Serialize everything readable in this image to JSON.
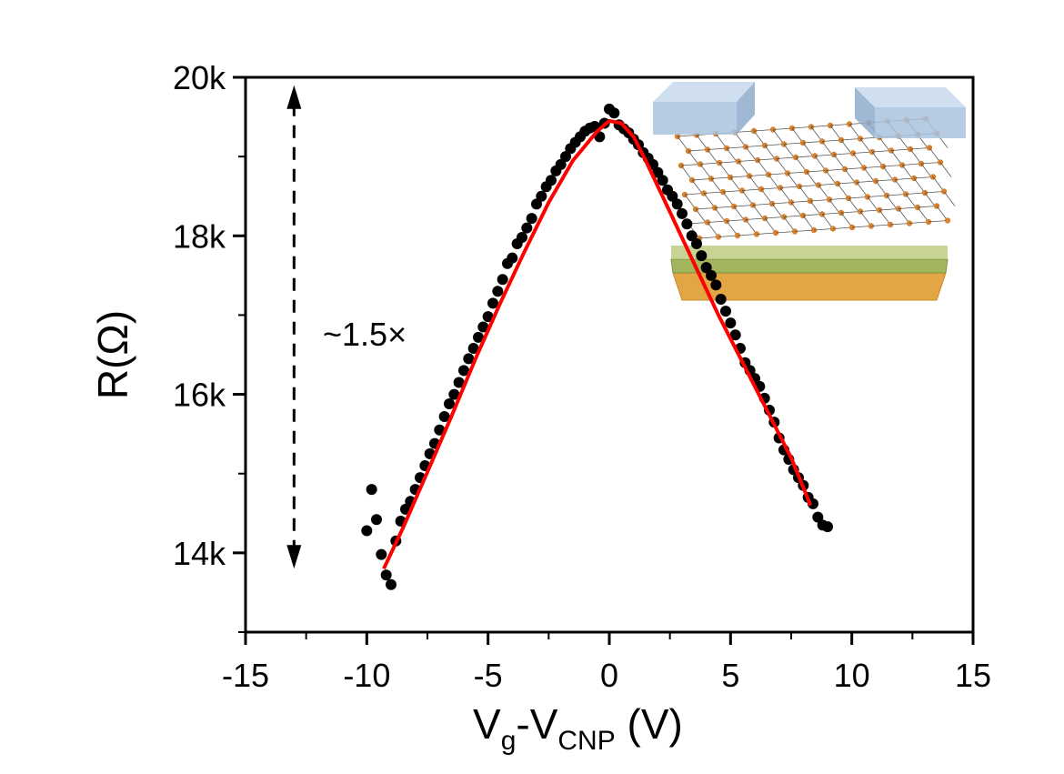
{
  "chart_data": {
    "type": "scatter",
    "xlabel": {
      "base1": "V",
      "sub1": "g",
      "mid": "-V",
      "sub2": "CNP",
      "unit": " (V)"
    },
    "ylabel": "R(Ω)",
    "xlim": [
      -15,
      15
    ],
    "ylim": [
      13000,
      20000
    ],
    "x_ticks": [
      -15,
      -10,
      -5,
      0,
      5,
      10,
      15
    ],
    "x_tick_labels": [
      "-15",
      "-10",
      "-5",
      "0",
      "5",
      "10",
      "15"
    ],
    "y_ticks": [
      14000,
      16000,
      18000,
      20000
    ],
    "y_tick_labels": [
      "14k",
      "16k",
      "18k",
      "20k"
    ],
    "grid": false,
    "annotation": "~1.5×",
    "arrow_range": [
      13800,
      19900
    ],
    "arrow_x": -13,
    "series": [
      {
        "kind": "scatter",
        "color": "#000000",
        "points": [
          [
            -10.0,
            14280
          ],
          [
            -9.8,
            14800
          ],
          [
            -9.6,
            14420
          ],
          [
            -9.4,
            13980
          ],
          [
            -9.2,
            13720
          ],
          [
            -9.0,
            13600
          ],
          [
            -8.8,
            14150
          ],
          [
            -8.6,
            14400
          ],
          [
            -8.4,
            14550
          ],
          [
            -8.2,
            14650
          ],
          [
            -8.0,
            14800
          ],
          [
            -7.8,
            14950
          ],
          [
            -7.6,
            15100
          ],
          [
            -7.4,
            15250
          ],
          [
            -7.2,
            15380
          ],
          [
            -7.0,
            15550
          ],
          [
            -6.8,
            15720
          ],
          [
            -6.6,
            15880
          ],
          [
            -6.4,
            16000
          ],
          [
            -6.2,
            16150
          ],
          [
            -6.0,
            16300
          ],
          [
            -5.8,
            16450
          ],
          [
            -5.6,
            16580
          ],
          [
            -5.4,
            16720
          ],
          [
            -5.2,
            16850
          ],
          [
            -5.0,
            16980
          ],
          [
            -4.8,
            17150
          ],
          [
            -4.6,
            17300
          ],
          [
            -4.4,
            17450
          ],
          [
            -4.2,
            17650
          ],
          [
            -4.0,
            17720
          ],
          [
            -3.8,
            17900
          ],
          [
            -3.6,
            17980
          ],
          [
            -3.4,
            18100
          ],
          [
            -3.2,
            18220
          ],
          [
            -3.0,
            18400
          ],
          [
            -2.8,
            18500
          ],
          [
            -2.6,
            18620
          ],
          [
            -2.4,
            18700
          ],
          [
            -2.2,
            18820
          ],
          [
            -2.0,
            18900
          ],
          [
            -1.8,
            19000
          ],
          [
            -1.6,
            19100
          ],
          [
            -1.4,
            19180
          ],
          [
            -1.2,
            19250
          ],
          [
            -1.0,
            19320
          ],
          [
            -0.8,
            19360
          ],
          [
            -0.6,
            19380
          ],
          [
            -0.4,
            19250
          ],
          [
            -0.2,
            19420
          ],
          [
            0.0,
            19600
          ],
          [
            0.2,
            19550
          ],
          [
            0.4,
            19400
          ],
          [
            0.6,
            19350
          ],
          [
            0.8,
            19300
          ],
          [
            1.0,
            19220
          ],
          [
            1.2,
            19150
          ],
          [
            1.4,
            19050
          ],
          [
            1.6,
            18980
          ],
          [
            1.8,
            18900
          ],
          [
            2.0,
            18800
          ],
          [
            2.2,
            18700
          ],
          [
            2.4,
            18580
          ],
          [
            2.6,
            18500
          ],
          [
            2.8,
            18400
          ],
          [
            3.0,
            18280
          ],
          [
            3.2,
            18150
          ],
          [
            3.4,
            18000
          ],
          [
            3.6,
            17900
          ],
          [
            3.8,
            17750
          ],
          [
            4.0,
            17600
          ],
          [
            4.2,
            17500
          ],
          [
            4.4,
            17380
          ],
          [
            4.6,
            17200
          ],
          [
            4.8,
            17050
          ],
          [
            5.0,
            16900
          ],
          [
            5.2,
            16750
          ],
          [
            5.4,
            16580
          ],
          [
            5.6,
            16400
          ],
          [
            5.8,
            16300
          ],
          [
            6.0,
            16200
          ],
          [
            6.2,
            16100
          ],
          [
            6.4,
            15950
          ],
          [
            6.6,
            15800
          ],
          [
            6.8,
            15650
          ],
          [
            7.0,
            15450
          ],
          [
            7.2,
            15300
          ],
          [
            7.4,
            15180
          ],
          [
            7.6,
            15050
          ],
          [
            7.8,
            14950
          ],
          [
            8.0,
            14850
          ],
          [
            8.2,
            14700
          ],
          [
            8.4,
            14620
          ],
          [
            8.6,
            14450
          ],
          [
            8.8,
            14350
          ],
          [
            9.0,
            14330
          ]
        ]
      },
      {
        "kind": "fit-line",
        "color": "#ff0000",
        "points": [
          [
            -9.3,
            13800
          ],
          [
            -8.5,
            14320
          ],
          [
            -7.5,
            15020
          ],
          [
            -6.5,
            15730
          ],
          [
            -5.5,
            16460
          ],
          [
            -4.5,
            17150
          ],
          [
            -3.5,
            17800
          ],
          [
            -2.5,
            18420
          ],
          [
            -1.5,
            18950
          ],
          [
            -0.5,
            19320
          ],
          [
            0.0,
            19450
          ],
          [
            0.5,
            19420
          ],
          [
            1.0,
            19250
          ],
          [
            1.5,
            18950
          ],
          [
            2.5,
            18300
          ],
          [
            3.5,
            17650
          ],
          [
            4.5,
            17000
          ],
          [
            5.5,
            16400
          ],
          [
            6.5,
            15800
          ],
          [
            7.5,
            15200
          ],
          [
            8.3,
            14600
          ]
        ]
      }
    ],
    "inset": {
      "description_name": "graphene-device-schematic",
      "colors": {
        "contact": "#a9c3de",
        "lattice": "#d9832f",
        "dielectric": "#a3b55d",
        "substrate": "#e3a645"
      }
    }
  }
}
